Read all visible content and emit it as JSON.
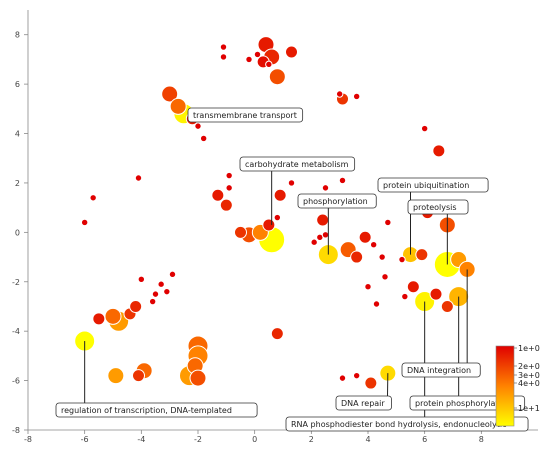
{
  "chart_data": {
    "type": "scatter",
    "title": "",
    "xlabel": "",
    "ylabel": "",
    "xlim": [
      -8,
      10
    ],
    "ylim": [
      -8,
      9
    ],
    "x_ticks": [
      -8,
      -6,
      -4,
      -2,
      0,
      2,
      4,
      6,
      8
    ],
    "y_ticks": [
      -8,
      -6,
      -4,
      -2,
      0,
      2,
      4,
      6,
      8
    ],
    "grid": false,
    "legend": {
      "placement": "bottom-right",
      "type": "colorbar",
      "labels": [
        "1e+0",
        "2e+0",
        "3e+0",
        "4e+0",
        "1e+1"
      ],
      "colors": [
        "#e00000",
        "#ffff00"
      ]
    },
    "points": [
      {
        "x": 0.4,
        "y": 7.6,
        "size": 2,
        "c": 0.1
      },
      {
        "x": 0.6,
        "y": 7.1,
        "size": 2,
        "c": 0.15
      },
      {
        "x": 0.8,
        "y": 6.3,
        "size": 2,
        "c": 0.3
      },
      {
        "x": 1.3,
        "y": 7.3,
        "size": 1,
        "c": 0.1
      },
      {
        "x": 0.3,
        "y": 6.9,
        "size": 1,
        "c": 0.05
      },
      {
        "x": -0.2,
        "y": 7.0,
        "size": 0,
        "c": 0
      },
      {
        "x": -1.1,
        "y": 7.5,
        "size": 0,
        "c": 0
      },
      {
        "x": -1.1,
        "y": 7.1,
        "size": 0,
        "c": 0
      },
      {
        "x": 0.1,
        "y": 7.2,
        "size": 0,
        "c": 0
      },
      {
        "x": 0.5,
        "y": 6.8,
        "size": 0,
        "c": 0
      },
      {
        "x": 3.1,
        "y": 5.4,
        "size": 1,
        "c": 0.2
      },
      {
        "x": 3.6,
        "y": 5.5,
        "size": 0,
        "c": 0
      },
      {
        "x": 3.0,
        "y": 5.6,
        "size": 0,
        "c": 0
      },
      {
        "x": -3.0,
        "y": 5.6,
        "size": 2,
        "c": 0.25
      },
      {
        "x": -2.7,
        "y": 5.1,
        "size": 2,
        "c": 0.4
      },
      {
        "x": -2.5,
        "y": 4.8,
        "size": 3,
        "c": 0.95
      },
      {
        "x": -2.2,
        "y": 4.6,
        "size": 1,
        "c": 0.1
      },
      {
        "x": -2.0,
        "y": 4.3,
        "size": 0,
        "c": 0
      },
      {
        "x": -1.8,
        "y": 3.8,
        "size": 0,
        "c": 0
      },
      {
        "x": -4.1,
        "y": 2.2,
        "size": 0,
        "c": 0
      },
      {
        "x": -5.7,
        "y": 1.4,
        "size": 0,
        "c": 0
      },
      {
        "x": -6.0,
        "y": 0.4,
        "size": 0,
        "c": 0
      },
      {
        "x": -1.3,
        "y": 1.5,
        "size": 1,
        "c": 0.1
      },
      {
        "x": -1.0,
        "y": 1.1,
        "size": 1,
        "c": 0.15
      },
      {
        "x": -0.9,
        "y": 1.8,
        "size": 0,
        "c": 0
      },
      {
        "x": -0.9,
        "y": 2.3,
        "size": 0,
        "c": 0
      },
      {
        "x": -0.5,
        "y": 0.0,
        "size": 1,
        "c": 0.2
      },
      {
        "x": -0.2,
        "y": -0.1,
        "size": 2,
        "c": 0.3
      },
      {
        "x": 0.2,
        "y": 0.0,
        "size": 2,
        "c": 0.5
      },
      {
        "x": 0.6,
        "y": -0.3,
        "size": 4,
        "c": 1.0
      },
      {
        "x": 0.5,
        "y": 0.3,
        "size": 1,
        "c": 0.1
      },
      {
        "x": 0.9,
        "y": 1.5,
        "size": 1,
        "c": 0.1
      },
      {
        "x": 1.8,
        "y": 1.2,
        "size": 1,
        "c": 0.4
      },
      {
        "x": 0.8,
        "y": 0.6,
        "size": 0,
        "c": 0
      },
      {
        "x": 1.3,
        "y": 2.0,
        "size": 0,
        "c": 0
      },
      {
        "x": 2.5,
        "y": 1.8,
        "size": 0,
        "c": 0
      },
      {
        "x": 3.1,
        "y": 2.1,
        "size": 0,
        "c": 0
      },
      {
        "x": 2.4,
        "y": 0.5,
        "size": 1,
        "c": 0.1
      },
      {
        "x": 2.6,
        "y": -0.9,
        "size": 3,
        "c": 0.85
      },
      {
        "x": 3.3,
        "y": -0.7,
        "size": 2,
        "c": 0.35
      },
      {
        "x": 3.6,
        "y": -1.0,
        "size": 1,
        "c": 0.15
      },
      {
        "x": 3.9,
        "y": -0.2,
        "size": 1,
        "c": 0.1
      },
      {
        "x": 2.3,
        "y": -0.2,
        "size": 0,
        "c": 0
      },
      {
        "x": 2.1,
        "y": -0.4,
        "size": 0,
        "c": 0
      },
      {
        "x": 2.5,
        "y": -0.1,
        "size": 0,
        "c": 0
      },
      {
        "x": 4.7,
        "y": 0.4,
        "size": 0,
        "c": 0
      },
      {
        "x": 4.2,
        "y": -0.5,
        "size": 0,
        "c": 0
      },
      {
        "x": 4.5,
        "y": -1.0,
        "size": 0,
        "c": 0
      },
      {
        "x": 5.5,
        "y": -0.9,
        "size": 2,
        "c": 0.75
      },
      {
        "x": 5.9,
        "y": -0.9,
        "size": 1,
        "c": 0.2
      },
      {
        "x": 5.2,
        "y": -1.1,
        "size": 0,
        "c": 0
      },
      {
        "x": 6.1,
        "y": 0.8,
        "size": 1,
        "c": 0.1
      },
      {
        "x": 6.8,
        "y": 0.3,
        "size": 2,
        "c": 0.3
      },
      {
        "x": 6.5,
        "y": 3.3,
        "size": 1,
        "c": 0.1
      },
      {
        "x": 6.0,
        "y": 4.2,
        "size": 0,
        "c": 0
      },
      {
        "x": 6.8,
        "y": -1.3,
        "size": 4,
        "c": 1.0
      },
      {
        "x": 7.2,
        "y": -1.1,
        "size": 2,
        "c": 0.6
      },
      {
        "x": 7.5,
        "y": -1.5,
        "size": 2,
        "c": 0.5
      },
      {
        "x": 7.2,
        "y": -2.6,
        "size": 3,
        "c": 0.7
      },
      {
        "x": 6.8,
        "y": -3.0,
        "size": 1,
        "c": 0.2
      },
      {
        "x": 6.4,
        "y": -2.5,
        "size": 1,
        "c": 0.1
      },
      {
        "x": 6.0,
        "y": -2.8,
        "size": 3,
        "c": 0.95
      },
      {
        "x": 5.6,
        "y": -2.2,
        "size": 1,
        "c": 0.1
      },
      {
        "x": 5.3,
        "y": -2.6,
        "size": 0,
        "c": 0
      },
      {
        "x": 4.6,
        "y": -1.8,
        "size": 0,
        "c": 0
      },
      {
        "x": 4.0,
        "y": -2.2,
        "size": 0,
        "c": 0
      },
      {
        "x": 4.3,
        "y": -2.9,
        "size": 0,
        "c": 0
      },
      {
        "x": 4.7,
        "y": -5.7,
        "size": 2,
        "c": 0.85
      },
      {
        "x": 4.1,
        "y": -6.1,
        "size": 1,
        "c": 0.2
      },
      {
        "x": 3.1,
        "y": -5.9,
        "size": 0,
        "c": 0
      },
      {
        "x": 3.6,
        "y": -5.8,
        "size": 0,
        "c": 0
      },
      {
        "x": 0.8,
        "y": -4.1,
        "size": 1,
        "c": 0.15
      },
      {
        "x": -2.0,
        "y": -4.6,
        "size": 3,
        "c": 0.4
      },
      {
        "x": -2.0,
        "y": -5.0,
        "size": 3,
        "c": 0.5
      },
      {
        "x": -2.1,
        "y": -5.4,
        "size": 2,
        "c": 0.4
      },
      {
        "x": -2.3,
        "y": -5.8,
        "size": 3,
        "c": 0.6
      },
      {
        "x": -2.0,
        "y": -5.9,
        "size": 2,
        "c": 0.3
      },
      {
        "x": -3.9,
        "y": -5.6,
        "size": 2,
        "c": 0.4
      },
      {
        "x": -4.1,
        "y": -5.8,
        "size": 1,
        "c": 0.2
      },
      {
        "x": -4.9,
        "y": -5.8,
        "size": 2,
        "c": 0.6
      },
      {
        "x": -4.8,
        "y": -3.6,
        "size": 3,
        "c": 0.6
      },
      {
        "x": -5.0,
        "y": -3.4,
        "size": 2,
        "c": 0.4
      },
      {
        "x": -4.4,
        "y": -3.3,
        "size": 1,
        "c": 0.2
      },
      {
        "x": -4.2,
        "y": -3.0,
        "size": 1,
        "c": 0.15
      },
      {
        "x": -5.5,
        "y": -3.5,
        "size": 1,
        "c": 0.1
      },
      {
        "x": -6.0,
        "y": -4.4,
        "size": 3,
        "c": 1.0
      },
      {
        "x": -3.5,
        "y": -2.5,
        "size": 0,
        "c": 0
      },
      {
        "x": -3.1,
        "y": -2.4,
        "size": 0,
        "c": 0
      },
      {
        "x": -4.0,
        "y": -1.9,
        "size": 0,
        "c": 0
      },
      {
        "x": -3.3,
        "y": -2.1,
        "size": 0,
        "c": 0
      },
      {
        "x": -2.9,
        "y": -1.7,
        "size": 0,
        "c": 0
      },
      {
        "x": -3.6,
        "y": -2.8,
        "size": 0,
        "c": 0
      }
    ],
    "annotations": [
      {
        "text": "transmembrane transport",
        "x": -2.2,
        "y": 4.6
      },
      {
        "text": "carbohydrate metabolism",
        "x": 0.6,
        "y": 0.3
      },
      {
        "text": "phosphorylation",
        "x": 2.6,
        "y": -0.9
      },
      {
        "text": "protein ubiquitination",
        "x": 5.5,
        "y": -0.9
      },
      {
        "text": "proteolysis",
        "x": 6.8,
        "y": -1.3
      },
      {
        "text": "DNA integration",
        "x": 7.5,
        "y": -1.5
      },
      {
        "text": "protein phosphorylation",
        "x": 7.2,
        "y": -2.6
      },
      {
        "text": "DNA repair",
        "x": 4.7,
        "y": -5.7
      },
      {
        "text": "RNA phosphodiester bond hydrolysis, endonucleolytic",
        "x": 6.0,
        "y": -2.8
      },
      {
        "text": "regulation of transcription, DNA-templated",
        "x": -6.0,
        "y": -4.4
      }
    ]
  }
}
